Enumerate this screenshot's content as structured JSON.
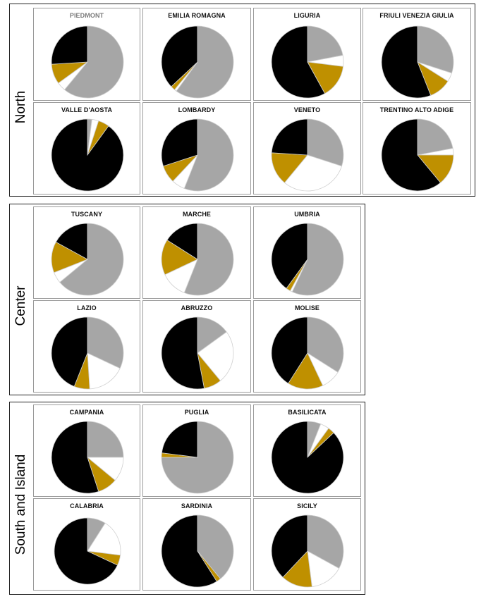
{
  "colors": {
    "grey": "#a6a6a6",
    "white": "#ffffff",
    "gold": "#bf9000",
    "black": "#000000"
  },
  "groups": [
    {
      "label": "North",
      "charts": [
        {
          "title": "PIEDMONT",
          "values": [
            61,
            4,
            9,
            26
          ]
        },
        {
          "title": "EMILIA ROMAGNA",
          "values": [
            60,
            1,
            2,
            37
          ]
        },
        {
          "title": "LIGURIA",
          "values": [
            22,
            5,
            15,
            58
          ]
        },
        {
          "title": "FRIULI VENEZIA GIULIA",
          "values": [
            30,
            4,
            10,
            56
          ]
        },
        {
          "title": "VALLE D'AOSTA",
          "values": [
            2,
            3,
            5,
            90
          ]
        },
        {
          "title": "LOMBARDY",
          "values": [
            56,
            6,
            8,
            30
          ]
        },
        {
          "title": "VENETO",
          "values": [
            30,
            31,
            15,
            24
          ]
        },
        {
          "title": "TRENTINO ALTO ADIGE",
          "values": [
            22,
            3,
            14,
            61
          ]
        }
      ]
    },
    {
      "label": "Center",
      "charts": [
        {
          "title": "TUSCANY",
          "values": [
            64,
            5,
            14,
            17
          ]
        },
        {
          "title": "MARCHE",
          "values": [
            56,
            12,
            16,
            16
          ]
        },
        {
          "title": "UMBRIA",
          "values": [
            57,
            1,
            2,
            40
          ]
        },
        {
          "title": "LAZIO",
          "values": [
            32,
            17,
            7,
            44
          ]
        },
        {
          "title": "ABRUZZO",
          "values": [
            15,
            24,
            8,
            53
          ]
        },
        {
          "title": "MOLISE",
          "values": [
            34,
            9,
            16,
            41
          ]
        }
      ]
    },
    {
      "label": "South and Island",
      "charts": [
        {
          "title": "CAMPANIA",
          "values": [
            25,
            11,
            9,
            55
          ]
        },
        {
          "title": "PUGLIA",
          "values": [
            75,
            0,
            2,
            23
          ]
        },
        {
          "title": "BASILICATA",
          "values": [
            6,
            4,
            3,
            87
          ]
        },
        {
          "title": "CALABRIA",
          "values": [
            9,
            18,
            5,
            68
          ]
        },
        {
          "title": "SARDINIA",
          "values": [
            39,
            0,
            2,
            59
          ]
        },
        {
          "title": "SICILY",
          "values": [
            33,
            15,
            14,
            38
          ]
        }
      ]
    }
  ],
  "chart_data": {
    "type": "pie",
    "series_colors": [
      "#a6a6a6",
      "#ffffff",
      "#bf9000",
      "#000000"
    ],
    "panels": [
      {
        "region": "PIEDMONT",
        "group": "North",
        "values": [
          61,
          4,
          9,
          26
        ]
      },
      {
        "region": "EMILIA ROMAGNA",
        "group": "North",
        "values": [
          60,
          1,
          2,
          37
        ]
      },
      {
        "region": "LIGURIA",
        "group": "North",
        "values": [
          22,
          5,
          15,
          58
        ]
      },
      {
        "region": "FRIULI VENEZIA GIULIA",
        "group": "North",
        "values": [
          30,
          4,
          10,
          56
        ]
      },
      {
        "region": "VALLE D'AOSTA",
        "group": "North",
        "values": [
          2,
          3,
          5,
          90
        ]
      },
      {
        "region": "LOMBARDY",
        "group": "North",
        "values": [
          56,
          6,
          8,
          30
        ]
      },
      {
        "region": "VENETO",
        "group": "North",
        "values": [
          30,
          31,
          15,
          24
        ]
      },
      {
        "region": "TRENTINO ALTO ADIGE",
        "group": "North",
        "values": [
          22,
          3,
          14,
          61
        ]
      },
      {
        "region": "TUSCANY",
        "group": "Center",
        "values": [
          64,
          5,
          14,
          17
        ]
      },
      {
        "region": "MARCHE",
        "group": "Center",
        "values": [
          56,
          12,
          16,
          16
        ]
      },
      {
        "region": "UMBRIA",
        "group": "Center",
        "values": [
          57,
          1,
          2,
          40
        ]
      },
      {
        "region": "LAZIO",
        "group": "Center",
        "values": [
          32,
          17,
          7,
          44
        ]
      },
      {
        "region": "ABRUZZO",
        "group": "Center",
        "values": [
          15,
          24,
          8,
          53
        ]
      },
      {
        "region": "MOLISE",
        "group": "Center",
        "values": [
          34,
          9,
          16,
          41
        ]
      },
      {
        "region": "CAMPANIA",
        "group": "South and Island",
        "values": [
          25,
          11,
          9,
          55
        ]
      },
      {
        "region": "PUGLIA",
        "group": "South and Island",
        "values": [
          75,
          0,
          2,
          23
        ]
      },
      {
        "region": "BASILICATA",
        "group": "South and Island",
        "values": [
          6,
          4,
          3,
          87
        ]
      },
      {
        "region": "CALABRIA",
        "group": "South and Island",
        "values": [
          9,
          18,
          5,
          68
        ]
      },
      {
        "region": "SARDINIA",
        "group": "South and Island",
        "values": [
          39,
          0,
          2,
          59
        ]
      },
      {
        "region": "SICILY",
        "group": "South and Island",
        "values": [
          33,
          15,
          14,
          38
        ]
      }
    ]
  }
}
